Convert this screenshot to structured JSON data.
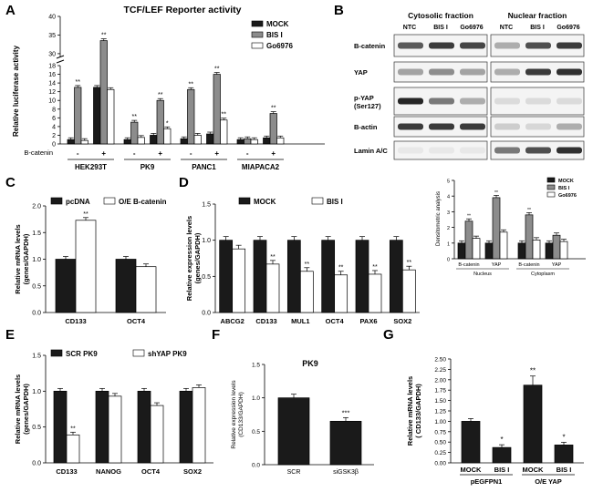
{
  "panels": {
    "A": "A",
    "B": "B",
    "C": "C",
    "D": "D",
    "E": "E",
    "F": "F",
    "G": "G"
  },
  "colors": {
    "black": "#1a1a1a",
    "gray": "#8c8c8c",
    "white": "#ffffff"
  },
  "blot": {
    "cyto_title": "Cytosolic fraction",
    "nuc_title": "Nuclear fraction",
    "lanes": [
      "NTC",
      "BIS I",
      "Go6976"
    ],
    "rows": [
      "B-catenin",
      "YAP",
      "p-YAP (Ser127)",
      "B-actin",
      "Lamin A/C"
    ],
    "intensity": {
      "cyto": [
        [
          0.7,
          0.85,
          0.8
        ],
        [
          0.35,
          0.45,
          0.35
        ],
        [
          0.95,
          0.55,
          0.3
        ],
        [
          0.85,
          0.85,
          0.85
        ],
        [
          0.02,
          0.02,
          0.02
        ]
      ],
      "nuc": [
        [
          0.3,
          0.75,
          0.85
        ],
        [
          0.3,
          0.85,
          0.9
        ],
        [
          0.08,
          0.08,
          0.08
        ],
        [
          0.15,
          0.1,
          0.3
        ],
        [
          0.55,
          0.75,
          0.9
        ]
      ]
    }
  },
  "chart_data": [
    {
      "panel": "A",
      "type": "bar",
      "title": "TCF/LEF Reporter activity",
      "ylabel": "Relative luciferase activity",
      "series_names": [
        "MOCK",
        "BIS I",
        "Go6976"
      ],
      "groups": [
        "HEK293T",
        "PK9",
        "PANC1",
        "MIAPACA2"
      ],
      "bcatenin_label": "B-catenin",
      "bcatenin_signs": [
        "-",
        "+",
        "-",
        "+",
        "-",
        "+",
        "-",
        "+"
      ],
      "values": [
        [
          1,
          13,
          0.8
        ],
        [
          13,
          33.5,
          12.5
        ],
        [
          1,
          5,
          1.5
        ],
        [
          2,
          10,
          3.5
        ],
        [
          1.2,
          12.5,
          2
        ],
        [
          2.3,
          16,
          5.5
        ],
        [
          1,
          1.2,
          1
        ],
        [
          1.4,
          7,
          1.4
        ]
      ],
      "stars": [
        [
          "",
          "**",
          ""
        ],
        [
          "",
          "**",
          ""
        ],
        [
          "",
          "**",
          ""
        ],
        [
          "",
          "**",
          "*"
        ],
        [
          "",
          "**",
          ""
        ],
        [
          "",
          "**",
          "**"
        ],
        [
          "",
          "",
          ""
        ],
        [
          "",
          "**",
          ""
        ]
      ],
      "lower_ticks": [
        "0",
        "2",
        "4",
        "6",
        "8",
        "10",
        "12",
        "14",
        "16",
        "18"
      ],
      "upper_ticks": [
        "30",
        "35",
        "40"
      ]
    },
    {
      "panel": "B-inset",
      "type": "bar",
      "ylabel": "Densitometric analysis",
      "series_names": [
        "MOCK",
        "BIS I",
        "Go6976"
      ],
      "categories": [
        "B-catenin",
        "YAP",
        "B-catenin",
        "YAP"
      ],
      "group_labels": [
        "Nucleus",
        "Cytoplasm"
      ],
      "values": [
        [
          1,
          2.4,
          1.3
        ],
        [
          1,
          3.9,
          1.7
        ],
        [
          1,
          2.8,
          1.2
        ],
        [
          1,
          1.5,
          1.1
        ]
      ],
      "stars": [
        [
          "",
          "**",
          ""
        ],
        [
          "",
          "**",
          ""
        ],
        [
          "",
          "**",
          ""
        ],
        [
          "",
          "",
          ""
        ]
      ],
      "ylim": [
        0,
        5
      ],
      "ticks": [
        "0",
        "1",
        "2",
        "3",
        "4",
        "5"
      ]
    },
    {
      "panel": "C",
      "type": "bar",
      "ylabel": "Relative mRNA levels (genes/GAPDH)",
      "series_names": [
        "pcDNA",
        "O/E B-catenin"
      ],
      "categories": [
        "CD133",
        "OCT4"
      ],
      "values": [
        [
          1.0,
          1.73
        ],
        [
          1.0,
          0.86
        ]
      ],
      "stars": [
        [
          "",
          "**"
        ],
        [
          "",
          ""
        ]
      ],
      "ylim": [
        0,
        2.0
      ],
      "ticks": [
        "0.0",
        "0.5",
        "1.0",
        "1.5",
        "2.0"
      ]
    },
    {
      "panel": "D",
      "type": "bar",
      "ylabel": "Relative expression levels (genes/GAPDH)",
      "series_names": [
        "MOCK",
        "BIS I"
      ],
      "categories": [
        "ABCG2",
        "CD133",
        "MUL1",
        "OCT4",
        "PAX6",
        "SOX2"
      ],
      "values": [
        [
          1.0,
          0.88
        ],
        [
          1.0,
          0.67
        ],
        [
          1.0,
          0.57
        ],
        [
          1.0,
          0.52
        ],
        [
          1.0,
          0.53
        ],
        [
          1.0,
          0.59
        ]
      ],
      "stars": [
        [
          "",
          ""
        ],
        [
          "",
          "**"
        ],
        [
          "",
          "**"
        ],
        [
          "",
          "**"
        ],
        [
          "",
          "**"
        ],
        [
          "",
          "**"
        ]
      ],
      "ylim": [
        0,
        1.5
      ],
      "ticks": [
        "0.0",
        "0.5",
        "1.0",
        "1.5"
      ]
    },
    {
      "panel": "E",
      "type": "bar",
      "ylabel": "Relative mRNA levels (genes/GAPDH)",
      "series_names": [
        "SCR PK9",
        "shYAP PK9"
      ],
      "categories": [
        "CD133",
        "NANOG",
        "OCT4",
        "SOX2"
      ],
      "values": [
        [
          1.0,
          0.39
        ],
        [
          1.0,
          0.93
        ],
        [
          1.0,
          0.8
        ],
        [
          1.0,
          1.05
        ]
      ],
      "stars": [
        [
          "",
          "**"
        ],
        [
          "",
          ""
        ],
        [
          "",
          ""
        ],
        [
          "",
          ""
        ]
      ],
      "ylim": [
        0,
        1.5
      ],
      "ticks": [
        "0.0",
        "0.5",
        "1.0",
        "1.5"
      ]
    },
    {
      "panel": "F",
      "type": "bar",
      "title": "PK9",
      "ylabel": "Relative expression levels (CD133/GAPDH)",
      "categories": [
        "SCR",
        "siGSK3β"
      ],
      "values": [
        1.0,
        0.65
      ],
      "stars": [
        "",
        "***"
      ],
      "ylim": [
        0,
        1.5
      ],
      "ticks": [
        "0.0",
        "0.5",
        "1.0",
        "1.5"
      ]
    },
    {
      "panel": "G",
      "type": "bar",
      "ylabel": "Relative mRNA levels ( CD133/GAPDH)",
      "categories": [
        "MOCK",
        "BIS I",
        "MOCK",
        "BIS I"
      ],
      "group_labels": [
        "pEGFPN1",
        "O/E YAP"
      ],
      "values": [
        1.0,
        0.37,
        1.87,
        0.43
      ],
      "stars": [
        "",
        "*",
        "**",
        "*"
      ],
      "ylim": [
        0,
        2.5
      ],
      "ticks": [
        "0.00",
        "0.25",
        "0.50",
        "0.75",
        "1.00",
        "1.25",
        "1.50",
        "1.75",
        "2.00",
        "2.25",
        "2.50"
      ]
    }
  ]
}
